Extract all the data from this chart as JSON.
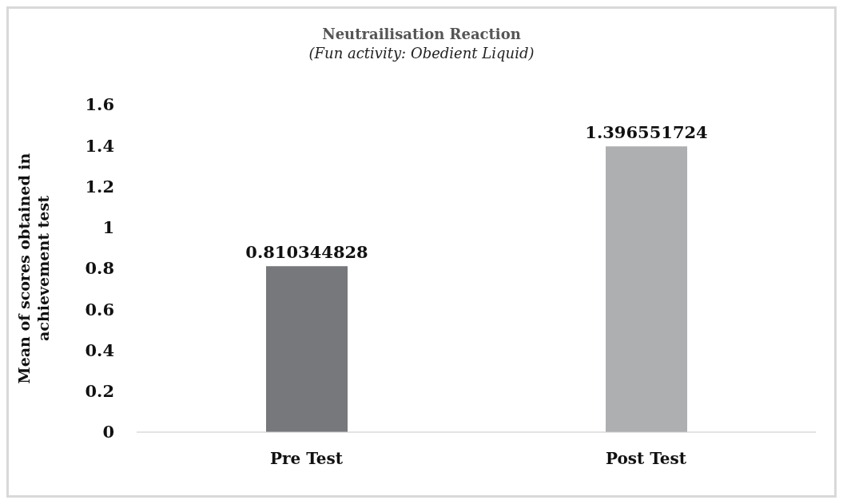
{
  "chart_data": {
    "type": "bar",
    "title": "Neutrailisation Reaction",
    "subtitle": "(Fun activity: Obedient Liquid)",
    "ylabel": "Mean of scores obtained in achievement test",
    "categories": [
      "Pre Test",
      "Post Test"
    ],
    "values": [
      0.810344828,
      1.396551724
    ],
    "colors": [
      "#77787b",
      "#aeafb1"
    ],
    "ylim": [
      0,
      1.6
    ],
    "yticks": [
      0,
      0.2,
      0.4,
      0.6,
      0.8,
      1,
      1.2,
      1.4,
      1.6
    ],
    "data_labels": true
  }
}
